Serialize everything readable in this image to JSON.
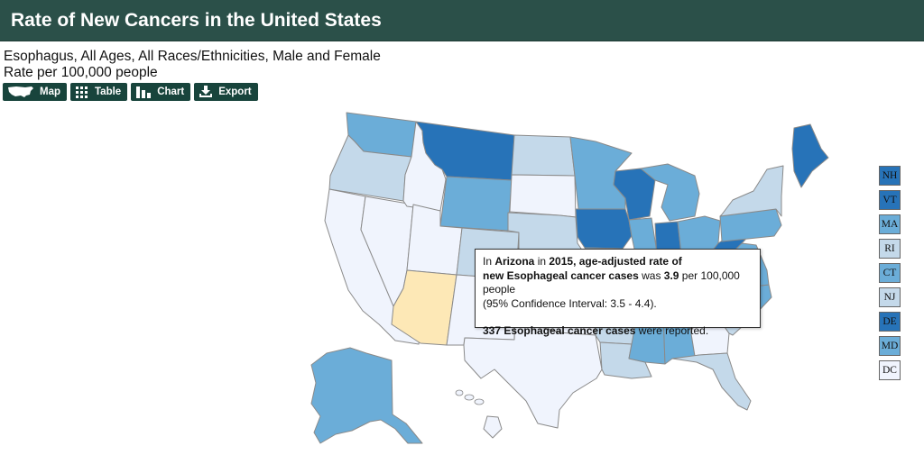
{
  "header": {
    "title": "Rate of New Cancers in the United States"
  },
  "subtitle": {
    "line1": "Esophagus, All Ages, All Races/Ethnicities, Male and Female",
    "line2": "Rate per 100,000 people"
  },
  "toolbar": {
    "map": {
      "label": "Map",
      "icon": "us-map-icon"
    },
    "table": {
      "label": "Table",
      "icon": "grid-icon"
    },
    "chart": {
      "label": "Chart",
      "icon": "bar-chart-icon"
    },
    "export": {
      "label": "Export",
      "icon": "download-icon"
    }
  },
  "colors": {
    "header_bg": "#2b5049",
    "button_bg": "#18443c",
    "highlight": "#fde8b6",
    "scale": [
      "#f0f4fd",
      "#c4d9ea",
      "#6badd8",
      "#2773b8"
    ]
  },
  "map": {
    "highlighted_state": "AZ",
    "state_classes": {
      "WA": 2,
      "OR": 1,
      "CA": 0,
      "NV": 0,
      "ID": 0,
      "MT": 3,
      "WY": 2,
      "UT": 0,
      "AZ": "highlight",
      "CO": 1,
      "NM": 0,
      "ND": 1,
      "SD": 0,
      "NE": 1,
      "KS": 1,
      "OK": 0,
      "TX": 0,
      "MN": 2,
      "IA": 3,
      "MO": 2,
      "AR": 1,
      "LA": 1,
      "WI": 3,
      "IL": 2,
      "MI": 2,
      "IN": 3,
      "OH": 2,
      "KY": 2,
      "TN": 1,
      "MS": 2,
      "AL": 2,
      "GA": 0,
      "FL": 1,
      "SC": 1,
      "NC": 2,
      "VA": 2,
      "WV": 3,
      "PA": 2,
      "NY": 1,
      "ME": 3,
      "AK": 2,
      "HI": 0
    }
  },
  "tooltip": {
    "prefix": "In ",
    "state": "Arizona",
    "in_word": " in ",
    "year": "2015",
    "heading_suffix": ", age-adjusted rate of",
    "measure": "new Esophageal cancer cases",
    "was": " was ",
    "rate": "3.9",
    "per": " per 100,000 people",
    "ci": "(95% Confidence Interval: 3.5 - 4.4).",
    "cases_count": "337",
    "cases_label": " Esophageal cancer cases",
    "cases_suffix": " were reported."
  },
  "side_legend": [
    {
      "code": "NH",
      "class": 3
    },
    {
      "code": "VT",
      "class": 3
    },
    {
      "code": "MA",
      "class": 2
    },
    {
      "code": "RI",
      "class": 1
    },
    {
      "code": "CT",
      "class": 2
    },
    {
      "code": "NJ",
      "class": 1
    },
    {
      "code": "DE",
      "class": 3
    },
    {
      "code": "MD",
      "class": 2
    },
    {
      "code": "DC",
      "class": 0
    }
  ]
}
